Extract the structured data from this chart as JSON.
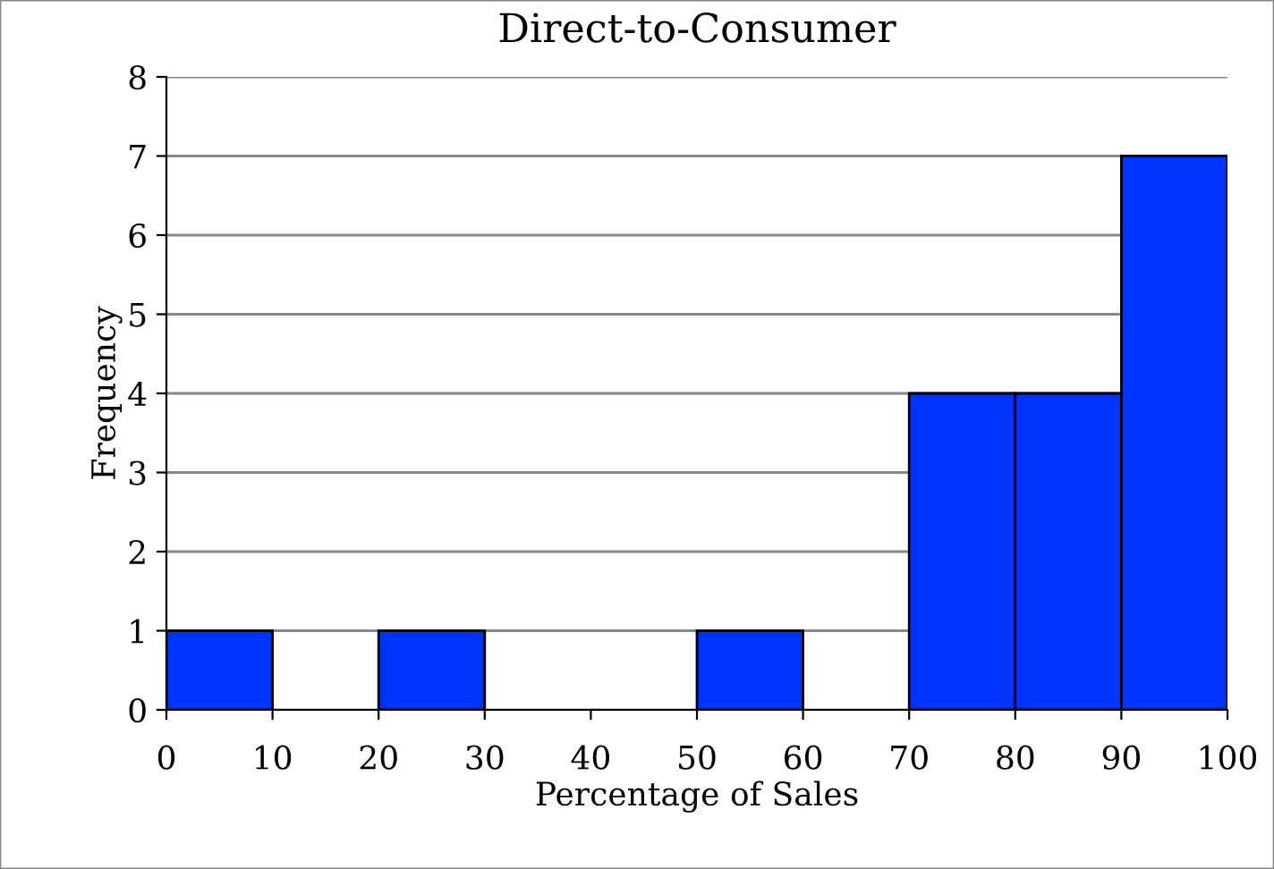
{
  "chart_data": {
    "type": "histogram",
    "title": "Direct-to-Consumer",
    "xlabel": "Percentage of Sales",
    "ylabel": "Frequency",
    "bins": [
      0,
      10,
      20,
      30,
      40,
      50,
      60,
      70,
      80,
      90,
      100
    ],
    "values": [
      1,
      0,
      1,
      0,
      0,
      1,
      0,
      4,
      4,
      7
    ],
    "color": "#0033ff",
    "xlim": [
      0,
      100
    ],
    "xticks": [
      0,
      10,
      20,
      30,
      40,
      50,
      60,
      70,
      80,
      90,
      100
    ],
    "ylim": [
      0,
      8
    ],
    "yticks": [
      0,
      1,
      2,
      3,
      4,
      5,
      6,
      7,
      8
    ],
    "grid": "y",
    "legend": false
  }
}
